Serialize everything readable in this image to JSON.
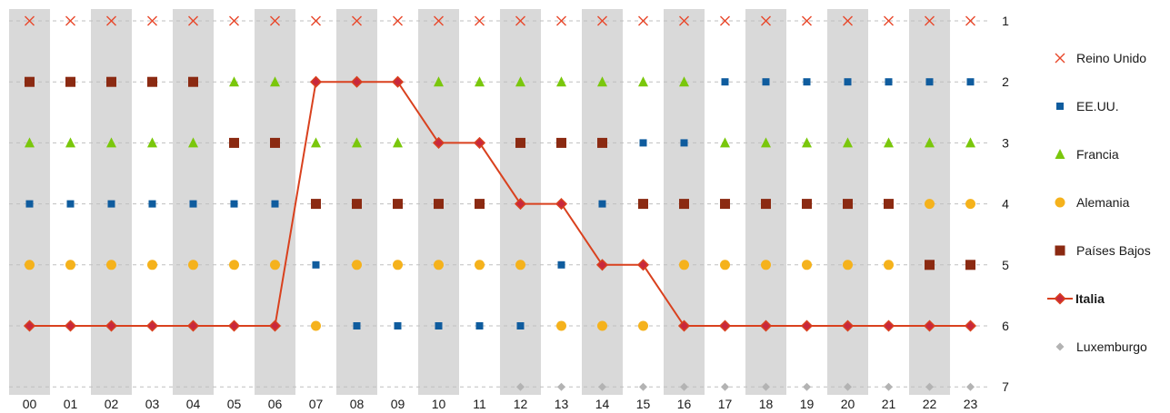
{
  "chart_data": {
    "type": "scatter",
    "title": "",
    "xlabel": "",
    "ylabel": "",
    "categories": [
      "00",
      "01",
      "02",
      "03",
      "04",
      "05",
      "06",
      "07",
      "08",
      "09",
      "10",
      "11",
      "12",
      "13",
      "14",
      "15",
      "16",
      "17",
      "18",
      "19",
      "20",
      "21",
      "22",
      "23"
    ],
    "yticks": [
      "1",
      "2",
      "3",
      "4",
      "5",
      "6",
      "7"
    ],
    "ylim": [
      1,
      7
    ],
    "y_inverted": true,
    "grid": "dashed horizontal lines at each rank",
    "shaded_columns": [
      "00",
      "02",
      "04",
      "06",
      "08",
      "10",
      "12",
      "14",
      "16",
      "18",
      "20",
      "22"
    ],
    "legend_position": "right",
    "series": [
      {
        "name": "Reino Unido",
        "marker": "x",
        "color": "#e8472a",
        "values": [
          1,
          1,
          1,
          1,
          1,
          1,
          1,
          1,
          1,
          1,
          1,
          1,
          1,
          1,
          1,
          1,
          1,
          1,
          1,
          1,
          1,
          1,
          1,
          1
        ]
      },
      {
        "name": "EE.UU.",
        "marker": "square-small",
        "color": "#0f5c9e",
        "values": [
          4,
          4,
          4,
          4,
          4,
          4,
          4,
          5,
          6,
          6,
          6,
          6,
          6,
          5,
          4,
          3,
          3,
          2,
          2,
          2,
          2,
          2,
          2,
          2
        ]
      },
      {
        "name": "Francia",
        "marker": "triangle",
        "color": "#7ac70c",
        "values": [
          3,
          3,
          3,
          3,
          3,
          2,
          2,
          3,
          3,
          3,
          2,
          2,
          2,
          2,
          2,
          2,
          2,
          3,
          3,
          3,
          3,
          3,
          3,
          3
        ]
      },
      {
        "name": "Alemania",
        "marker": "circle",
        "color": "#f5b21c",
        "values": [
          5,
          5,
          5,
          5,
          5,
          5,
          5,
          6,
          5,
          5,
          5,
          5,
          5,
          6,
          6,
          6,
          5,
          5,
          5,
          5,
          5,
          5,
          4,
          4
        ]
      },
      {
        "name": "Países Bajos",
        "marker": "square",
        "color": "#8b2a12",
        "values": [
          2,
          2,
          2,
          2,
          2,
          3,
          3,
          4,
          4,
          4,
          4,
          4,
          3,
          3,
          3,
          4,
          4,
          4,
          4,
          4,
          4,
          4,
          5,
          5
        ]
      },
      {
        "name": "Italia",
        "marker": "diamond-line",
        "color": "#d9411e",
        "highlight": true,
        "values": [
          6,
          6,
          6,
          6,
          6,
          6,
          6,
          2,
          2,
          2,
          3,
          3,
          4,
          4,
          5,
          5,
          6,
          6,
          6,
          6,
          6,
          6,
          6,
          6
        ]
      },
      {
        "name": "Luxemburgo",
        "marker": "diamond-small",
        "color": "#b3b3b3",
        "values": [
          null,
          null,
          null,
          null,
          null,
          null,
          null,
          null,
          null,
          null,
          null,
          null,
          7,
          7,
          7,
          7,
          7,
          7,
          7,
          7,
          7,
          7,
          7,
          7
        ]
      }
    ]
  }
}
